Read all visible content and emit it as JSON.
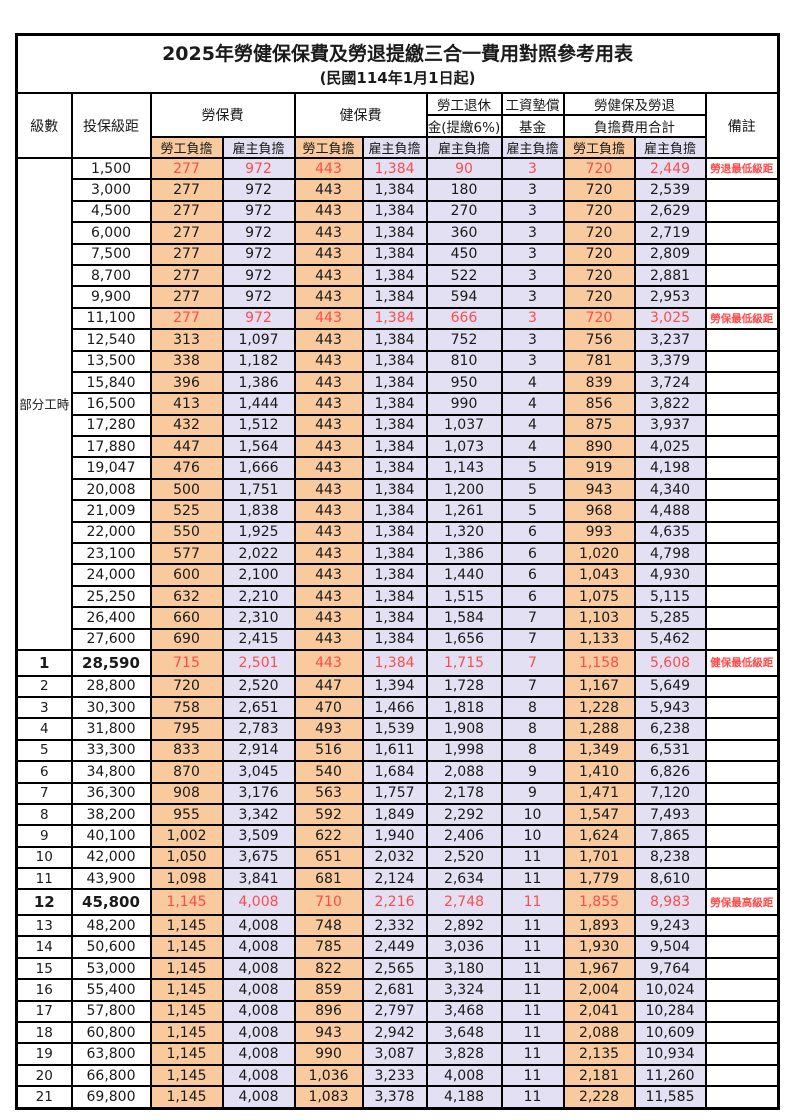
{
  "title": "2025年勞健保保費及勞退提繳三合一費用對照參考用表",
  "subtitle": "(民國114年1月1日起)",
  "colors": {
    "employee_share_bg": "#F9CA9D",
    "employer_share_bg": "#E2E0F2",
    "highlight_text": "#FF4B4B",
    "border": "#000000"
  },
  "header": {
    "level": "級數",
    "bracket": "投保級距",
    "labor_fee": "勞保費",
    "health_fee": "健保費",
    "pension_line1": "勞工退休",
    "pension_line2": "金(提繳6%)",
    "fund_line1": "工資墊償",
    "fund_line2": "基金",
    "total_line1": "勞健保及勞退",
    "total_line2": "負擔費用合計",
    "remark": "備註",
    "employee_share": "勞工負擔",
    "employer_share": "雇主負擔"
  },
  "group_label": "部分工時",
  "group_rowspan": 23,
  "row_columns": [
    "level",
    "bracket",
    "labor_emp",
    "labor_er",
    "health_emp",
    "health_er",
    "pension_er",
    "fund_er",
    "total_emp",
    "total_er",
    "remark",
    "flags"
  ],
  "rows": [
    [
      "",
      "1,500",
      "277",
      "972",
      "443",
      "1,384",
      "90",
      "3",
      "720",
      "2,449",
      "勞退最低級距",
      "red"
    ],
    [
      "",
      "3,000",
      "277",
      "972",
      "443",
      "1,384",
      "180",
      "3",
      "720",
      "2,539",
      "",
      ""
    ],
    [
      "",
      "4,500",
      "277",
      "972",
      "443",
      "1,384",
      "270",
      "3",
      "720",
      "2,629",
      "",
      ""
    ],
    [
      "",
      "6,000",
      "277",
      "972",
      "443",
      "1,384",
      "360",
      "3",
      "720",
      "2,719",
      "",
      ""
    ],
    [
      "",
      "7,500",
      "277",
      "972",
      "443",
      "1,384",
      "450",
      "3",
      "720",
      "2,809",
      "",
      ""
    ],
    [
      "",
      "8,700",
      "277",
      "972",
      "443",
      "1,384",
      "522",
      "3",
      "720",
      "2,881",
      "",
      ""
    ],
    [
      "",
      "9,900",
      "277",
      "972",
      "443",
      "1,384",
      "594",
      "3",
      "720",
      "2,953",
      "",
      ""
    ],
    [
      "",
      "11,100",
      "277",
      "972",
      "443",
      "1,384",
      "666",
      "3",
      "720",
      "3,025",
      "勞保最低級距",
      "red"
    ],
    [
      "",
      "12,540",
      "313",
      "1,097",
      "443",
      "1,384",
      "752",
      "3",
      "756",
      "3,237",
      "",
      ""
    ],
    [
      "",
      "13,500",
      "338",
      "1,182",
      "443",
      "1,384",
      "810",
      "3",
      "781",
      "3,379",
      "",
      ""
    ],
    [
      "",
      "15,840",
      "396",
      "1,386",
      "443",
      "1,384",
      "950",
      "4",
      "839",
      "3,724",
      "",
      ""
    ],
    [
      "",
      "16,500",
      "413",
      "1,444",
      "443",
      "1,384",
      "990",
      "4",
      "856",
      "3,822",
      "",
      ""
    ],
    [
      "",
      "17,280",
      "432",
      "1,512",
      "443",
      "1,384",
      "1,037",
      "4",
      "875",
      "3,937",
      "",
      ""
    ],
    [
      "",
      "17,880",
      "447",
      "1,564",
      "443",
      "1,384",
      "1,073",
      "4",
      "890",
      "4,025",
      "",
      ""
    ],
    [
      "",
      "19,047",
      "476",
      "1,666",
      "443",
      "1,384",
      "1,143",
      "5",
      "919",
      "4,198",
      "",
      ""
    ],
    [
      "",
      "20,008",
      "500",
      "1,751",
      "443",
      "1,384",
      "1,200",
      "5",
      "943",
      "4,340",
      "",
      ""
    ],
    [
      "",
      "21,009",
      "525",
      "1,838",
      "443",
      "1,384",
      "1,261",
      "5",
      "968",
      "4,488",
      "",
      ""
    ],
    [
      "",
      "22,000",
      "550",
      "1,925",
      "443",
      "1,384",
      "1,320",
      "6",
      "993",
      "4,635",
      "",
      ""
    ],
    [
      "",
      "23,100",
      "577",
      "2,022",
      "443",
      "1,384",
      "1,386",
      "6",
      "1,020",
      "4,798",
      "",
      ""
    ],
    [
      "",
      "24,000",
      "600",
      "2,100",
      "443",
      "1,384",
      "1,440",
      "6",
      "1,043",
      "4,930",
      "",
      ""
    ],
    [
      "",
      "25,250",
      "632",
      "2,210",
      "443",
      "1,384",
      "1,515",
      "6",
      "1,075",
      "5,115",
      "",
      ""
    ],
    [
      "",
      "26,400",
      "660",
      "2,310",
      "443",
      "1,384",
      "1,584",
      "7",
      "1,103",
      "5,285",
      "",
      ""
    ],
    [
      "",
      "27,600",
      "690",
      "2,415",
      "443",
      "1,384",
      "1,656",
      "7",
      "1,133",
      "5,462",
      "",
      ""
    ],
    [
      "1",
      "28,590",
      "715",
      "2,501",
      "443",
      "1,384",
      "1,715",
      "7",
      "1,158",
      "5,608",
      "健保最低級距",
      "red special"
    ],
    [
      "2",
      "28,800",
      "720",
      "2,520",
      "447",
      "1,394",
      "1,728",
      "7",
      "1,167",
      "5,649",
      "",
      ""
    ],
    [
      "3",
      "30,300",
      "758",
      "2,651",
      "470",
      "1,466",
      "1,818",
      "8",
      "1,228",
      "5,943",
      "",
      ""
    ],
    [
      "4",
      "31,800",
      "795",
      "2,783",
      "493",
      "1,539",
      "1,908",
      "8",
      "1,288",
      "6,238",
      "",
      ""
    ],
    [
      "5",
      "33,300",
      "833",
      "2,914",
      "516",
      "1,611",
      "1,998",
      "8",
      "1,349",
      "6,531",
      "",
      ""
    ],
    [
      "6",
      "34,800",
      "870",
      "3,045",
      "540",
      "1,684",
      "2,088",
      "9",
      "1,410",
      "6,826",
      "",
      ""
    ],
    [
      "7",
      "36,300",
      "908",
      "3,176",
      "563",
      "1,757",
      "2,178",
      "9",
      "1,471",
      "7,120",
      "",
      ""
    ],
    [
      "8",
      "38,200",
      "955",
      "3,342",
      "592",
      "1,849",
      "2,292",
      "10",
      "1,547",
      "7,493",
      "",
      ""
    ],
    [
      "9",
      "40,100",
      "1,002",
      "3,509",
      "622",
      "1,940",
      "2,406",
      "10",
      "1,624",
      "7,865",
      "",
      ""
    ],
    [
      "10",
      "42,000",
      "1,050",
      "3,675",
      "651",
      "2,032",
      "2,520",
      "11",
      "1,701",
      "8,238",
      "",
      ""
    ],
    [
      "11",
      "43,900",
      "1,098",
      "3,841",
      "681",
      "2,124",
      "2,634",
      "11",
      "1,779",
      "8,610",
      "",
      ""
    ],
    [
      "12",
      "45,800",
      "1,145",
      "4,008",
      "710",
      "2,216",
      "2,748",
      "11",
      "1,855",
      "8,983",
      "勞保最高級距",
      "red special"
    ],
    [
      "13",
      "48,200",
      "1,145",
      "4,008",
      "748",
      "2,332",
      "2,892",
      "11",
      "1,893",
      "9,243",
      "",
      ""
    ],
    [
      "14",
      "50,600",
      "1,145",
      "4,008",
      "785",
      "2,449",
      "3,036",
      "11",
      "1,930",
      "9,504",
      "",
      ""
    ],
    [
      "15",
      "53,000",
      "1,145",
      "4,008",
      "822",
      "2,565",
      "3,180",
      "11",
      "1,967",
      "9,764",
      "",
      ""
    ],
    [
      "16",
      "55,400",
      "1,145",
      "4,008",
      "859",
      "2,681",
      "3,324",
      "11",
      "2,004",
      "10,024",
      "",
      ""
    ],
    [
      "17",
      "57,800",
      "1,145",
      "4,008",
      "896",
      "2,797",
      "3,468",
      "11",
      "2,041",
      "10,284",
      "",
      ""
    ],
    [
      "18",
      "60,800",
      "1,145",
      "4,008",
      "943",
      "2,942",
      "3,648",
      "11",
      "2,088",
      "10,609",
      "",
      ""
    ],
    [
      "19",
      "63,800",
      "1,145",
      "4,008",
      "990",
      "3,087",
      "3,828",
      "11",
      "2,135",
      "10,934",
      "",
      ""
    ],
    [
      "20",
      "66,800",
      "1,145",
      "4,008",
      "1,036",
      "3,233",
      "4,008",
      "11",
      "2,181",
      "11,260",
      "",
      ""
    ],
    [
      "21",
      "69,800",
      "1,145",
      "4,008",
      "1,083",
      "3,378",
      "4,188",
      "11",
      "2,228",
      "11,585",
      "",
      ""
    ]
  ]
}
